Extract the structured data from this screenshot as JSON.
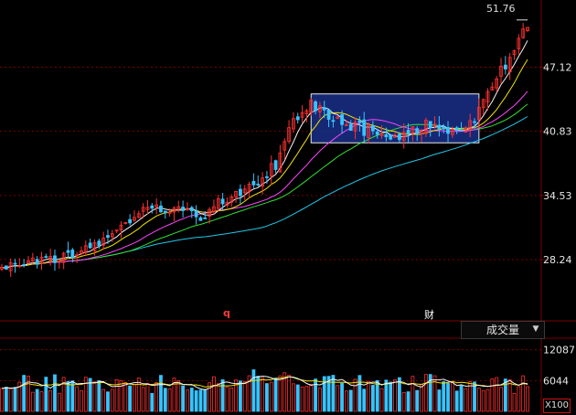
{
  "colors": {
    "background": "#000000",
    "grid": "#7a0000",
    "up": "#ff3030",
    "down": "#37c4ff",
    "ma5": "#f5f5f5",
    "ma10": "#f2e300",
    "ma20": "#ff44ff",
    "ma30": "#33dd33",
    "ma60": "#20c8e8",
    "highlight_box": "#1a2f88"
  },
  "price_axis": {
    "ticks": [
      "47.12",
      "40.83",
      "34.53",
      "28.24"
    ],
    "peak_label": "51.76"
  },
  "markers": {
    "q": "q",
    "cai": "财"
  },
  "volume_panel": {
    "indicator_label": "成交量",
    "ticks": [
      "12087",
      "6044"
    ],
    "unit_label": "X100"
  },
  "chart_data": {
    "type": "candlestick",
    "price_ylim": [
      22.5,
      53.0
    ],
    "volume_ylim": [
      0,
      14000
    ],
    "candle_count": 120,
    "trend": [
      [
        0,
        27.6
      ],
      [
        10,
        28.2
      ],
      [
        20,
        29.5
      ],
      [
        30,
        32.6
      ],
      [
        38,
        33.4
      ],
      [
        45,
        32.6
      ],
      [
        52,
        34.6
      ],
      [
        58,
        35.9
      ],
      [
        62,
        37.5
      ],
      [
        66,
        42.0
      ],
      [
        70,
        43.5
      ],
      [
        78,
        41.4
      ],
      [
        86,
        40.6
      ],
      [
        90,
        40.1
      ],
      [
        96,
        41.5
      ],
      [
        104,
        40.9
      ],
      [
        108,
        42.6
      ],
      [
        112,
        46.0
      ],
      [
        116,
        49.0
      ],
      [
        119,
        51.5
      ]
    ],
    "highlight_range": {
      "start_index": 70,
      "end_index": 108,
      "price_low": 39.7,
      "price_high": 44.5
    },
    "annotations": [
      "51.76"
    ]
  }
}
